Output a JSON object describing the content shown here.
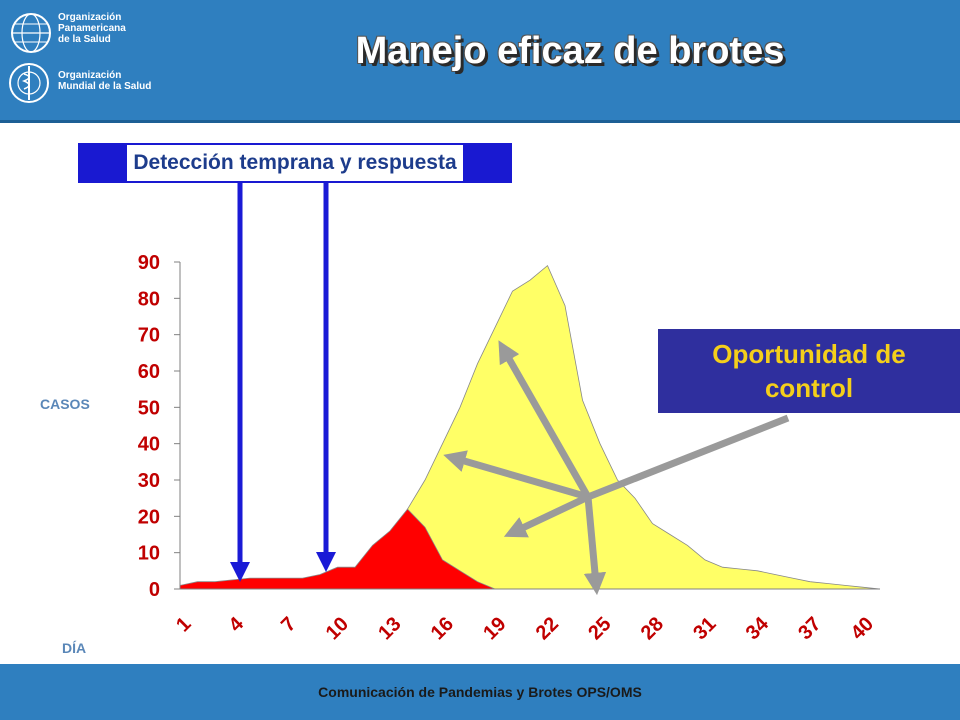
{
  "header": {
    "org1": [
      "Organización",
      "Panamericana",
      "de la Salud"
    ],
    "org2": [
      "Organización",
      "Mundial de la Salud"
    ],
    "title": "Manejo eficaz de brotes",
    "logo1_icon": "paho-globe-icon",
    "logo2_icon": "who-emblem-icon"
  },
  "detection_label": "Detección temprana y respuesta",
  "control_label": [
    "Oportunidad de",
    "control"
  ],
  "footer": "Comunicación de Pandemias y Brotes OPS/OMS",
  "colors": {
    "header_bg": "#2f7fbf",
    "red_area": "#ff0000",
    "yellow_area": "#ffff66",
    "blue_arrow": "#1a1ad6",
    "grey_arrow": "#9a9a9a",
    "tick_label": "#c00000"
  },
  "chart_data": {
    "type": "area",
    "xlabel": "DÍA",
    "ylabel": "CASOS",
    "ylim": [
      0,
      90
    ],
    "yticks": [
      0,
      10,
      20,
      30,
      40,
      50,
      60,
      70,
      80,
      90
    ],
    "xlim": [
      1,
      41
    ],
    "xticks": [
      1,
      4,
      7,
      10,
      13,
      16,
      19,
      22,
      25,
      28,
      31,
      34,
      37,
      40
    ],
    "grid": false,
    "legend": "none",
    "series": [
      {
        "x": [
          1,
          2,
          3,
          4,
          5,
          6,
          7,
          8,
          9,
          10,
          11,
          12,
          13,
          14,
          15,
          16,
          17,
          18,
          19,
          20,
          21,
          22,
          23,
          24,
          25,
          26,
          27,
          28,
          29,
          30,
          31,
          32,
          33,
          34,
          35,
          36,
          37,
          38,
          39,
          40,
          41
        ],
        "values": [
          1,
          2,
          2,
          2.5,
          3,
          3,
          3,
          3,
          4,
          6,
          6,
          12,
          16,
          22,
          17,
          8,
          5,
          2,
          0,
          0,
          0,
          0,
          0,
          0,
          0,
          0,
          0,
          0,
          0,
          0,
          0,
          0,
          0,
          0,
          0,
          0,
          0,
          0,
          0,
          0,
          0
        ]
      },
      {
        "x": [
          1,
          2,
          3,
          4,
          5,
          6,
          7,
          8,
          9,
          10,
          11,
          12,
          13,
          14,
          15,
          16,
          17,
          18,
          19,
          20,
          21,
          22,
          23,
          24,
          25,
          26,
          27,
          28,
          29,
          30,
          31,
          32,
          33,
          34,
          35,
          36,
          37,
          38,
          39,
          40,
          41
        ],
        "values": [
          0,
          0,
          0,
          0,
          0,
          0,
          0,
          0,
          0,
          0,
          0,
          0,
          0,
          22,
          30,
          40,
          50,
          62,
          72,
          82,
          85,
          89,
          78,
          52,
          40,
          30,
          25,
          18,
          15,
          12,
          8,
          6,
          5.5,
          5,
          4,
          3,
          2,
          1.5,
          1,
          0.5,
          0
        ]
      }
    ]
  }
}
